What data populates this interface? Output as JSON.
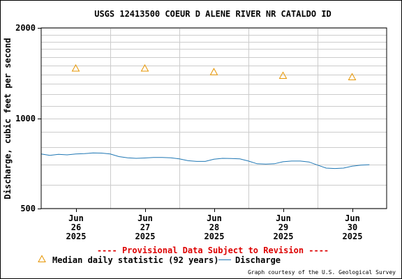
{
  "chart_data": {
    "type": "line",
    "title": "USGS 12413500 COEUR D ALENE RIVER NR CATALDO ID",
    "ylabel": "Discharge, cubic feet per second",
    "xlabel": "",
    "y_scale": "log",
    "ylim": [
      500,
      2000
    ],
    "y_ticks": [
      {
        "value": 500,
        "label": "500"
      },
      {
        "value": 1000,
        "label": "1000"
      },
      {
        "value": 2000,
        "label": "2000"
      }
    ],
    "y_minor_gridlines": [
      600,
      700,
      800,
      900,
      1100,
      1200,
      1300,
      1400,
      1500,
      1600,
      1700,
      1800,
      1900
    ],
    "xlim": [
      "2025-06-25T12:00",
      "2025-06-30T12:00"
    ],
    "x_ticks": [
      {
        "x": "2025-06-26T00:00",
        "lines": [
          "Jun",
          "26",
          "2025"
        ]
      },
      {
        "x": "2025-06-27T00:00",
        "lines": [
          "Jun",
          "27",
          "2025"
        ]
      },
      {
        "x": "2025-06-28T00:00",
        "lines": [
          "Jun",
          "28",
          "2025"
        ]
      },
      {
        "x": "2025-06-29T00:00",
        "lines": [
          "Jun",
          "29",
          "2025"
        ]
      },
      {
        "x": "2025-06-30T00:00",
        "lines": [
          "Jun",
          "30",
          "2025"
        ]
      }
    ],
    "x_gridlines_at": [
      "2025-06-26T12:00",
      "2025-06-27T12:00",
      "2025-06-28T12:00",
      "2025-06-29T12:00"
    ],
    "grid": true,
    "series": [
      {
        "name": "Median daily statistic (92 years)",
        "kind": "markers",
        "marker": "triangle",
        "color": "#e69500",
        "points": [
          {
            "x": "2025-06-26T00:00",
            "y": 1470
          },
          {
            "x": "2025-06-27T00:00",
            "y": 1470
          },
          {
            "x": "2025-06-28T00:00",
            "y": 1430
          },
          {
            "x": "2025-06-29T00:00",
            "y": 1390
          },
          {
            "x": "2025-06-30T00:00",
            "y": 1375
          }
        ]
      },
      {
        "name": "Discharge",
        "kind": "line",
        "color": "#1f77b4",
        "points": [
          {
            "x": "2025-06-25T12:00",
            "y": 760
          },
          {
            "x": "2025-06-25T15:00",
            "y": 752
          },
          {
            "x": "2025-06-25T18:00",
            "y": 758
          },
          {
            "x": "2025-06-25T21:00",
            "y": 755
          },
          {
            "x": "2025-06-26T00:00",
            "y": 760
          },
          {
            "x": "2025-06-26T03:00",
            "y": 762
          },
          {
            "x": "2025-06-26T06:00",
            "y": 766
          },
          {
            "x": "2025-06-26T09:00",
            "y": 765
          },
          {
            "x": "2025-06-26T12:00",
            "y": 760
          },
          {
            "x": "2025-06-26T15:00",
            "y": 745
          },
          {
            "x": "2025-06-26T18:00",
            "y": 738
          },
          {
            "x": "2025-06-26T21:00",
            "y": 735
          },
          {
            "x": "2025-06-27T00:00",
            "y": 737
          },
          {
            "x": "2025-06-27T03:00",
            "y": 740
          },
          {
            "x": "2025-06-27T06:00",
            "y": 740
          },
          {
            "x": "2025-06-27T09:00",
            "y": 738
          },
          {
            "x": "2025-06-27T12:00",
            "y": 732
          },
          {
            "x": "2025-06-27T15:00",
            "y": 722
          },
          {
            "x": "2025-06-27T18:00",
            "y": 718
          },
          {
            "x": "2025-06-27T21:00",
            "y": 718
          },
          {
            "x": "2025-06-28T00:00",
            "y": 730
          },
          {
            "x": "2025-06-28T03:00",
            "y": 735
          },
          {
            "x": "2025-06-28T06:00",
            "y": 734
          },
          {
            "x": "2025-06-28T09:00",
            "y": 732
          },
          {
            "x": "2025-06-28T12:00",
            "y": 720
          },
          {
            "x": "2025-06-28T15:00",
            "y": 705
          },
          {
            "x": "2025-06-28T18:00",
            "y": 703
          },
          {
            "x": "2025-06-28T21:00",
            "y": 705
          },
          {
            "x": "2025-06-29T00:00",
            "y": 716
          },
          {
            "x": "2025-06-29T03:00",
            "y": 720
          },
          {
            "x": "2025-06-29T06:00",
            "y": 720
          },
          {
            "x": "2025-06-29T09:00",
            "y": 715
          },
          {
            "x": "2025-06-29T12:00",
            "y": 698
          },
          {
            "x": "2025-06-29T15:00",
            "y": 682
          },
          {
            "x": "2025-06-29T18:00",
            "y": 680
          },
          {
            "x": "2025-06-29T21:00",
            "y": 682
          },
          {
            "x": "2025-06-30T00:00",
            "y": 692
          },
          {
            "x": "2025-06-30T03:00",
            "y": 698
          },
          {
            "x": "2025-06-30T06:00",
            "y": 700
          }
        ]
      }
    ],
    "legend": {
      "placement": "bottom",
      "entries": [
        {
          "label": "Median daily statistic (92 years)",
          "symbol": "triangle",
          "color": "#e69500"
        },
        {
          "label": "Discharge",
          "symbol": "line",
          "color": "#1f77b4"
        }
      ]
    }
  },
  "notice": {
    "text": "---- Provisional Data Subject to Revision ----",
    "color": "#dd0000"
  },
  "credit": "Graph courtesy of the U.S. Geological Survey",
  "colors": {
    "grid": "#cccccc",
    "axis": "#000000",
    "background": "#ffffff"
  }
}
